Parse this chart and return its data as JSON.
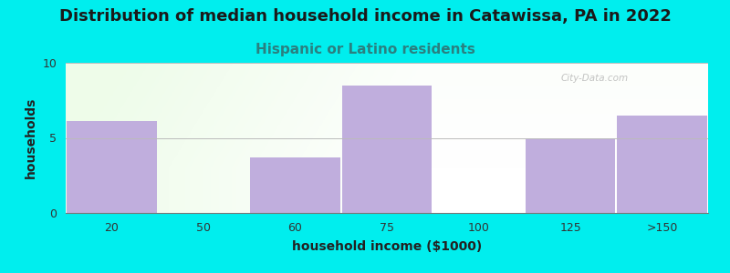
{
  "title": "Distribution of median household income in Catawissa, PA in 2022",
  "subtitle": "Hispanic or Latino residents",
  "xlabel": "household income ($1000)",
  "ylabel": "households",
  "background_color": "#00EEEE",
  "bar_color": "#c0aedd",
  "categories": [
    "20",
    "50",
    "60",
    "75",
    "100",
    "125",
    ">150"
  ],
  "values": [
    6.1,
    0,
    3.7,
    8.5,
    0,
    5.0,
    6.5
  ],
  "ylim": [
    0,
    10
  ],
  "yticks": [
    0,
    5,
    10
  ],
  "title_fontsize": 13,
  "subtitle_fontsize": 11,
  "axis_label_fontsize": 10,
  "tick_fontsize": 9,
  "title_color": "#1a1a1a",
  "subtitle_color": "#2a8080",
  "grid_color": "#bbbbbb",
  "watermark": "City-Data.com"
}
